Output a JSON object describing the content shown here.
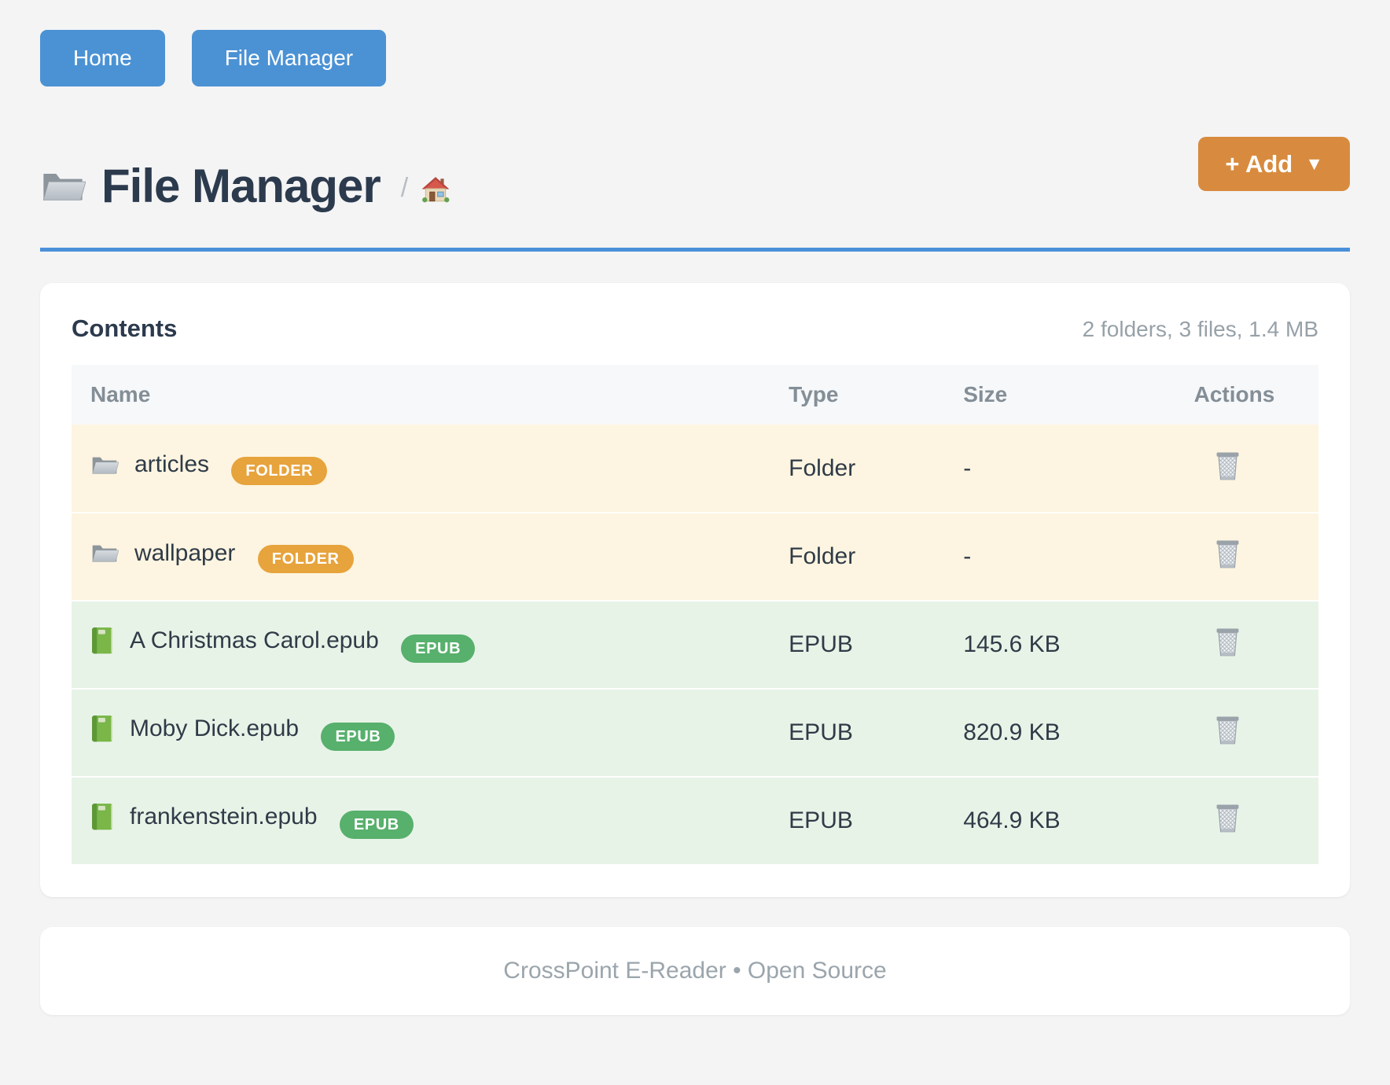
{
  "nav": {
    "home_label": "Home",
    "file_manager_label": "File Manager"
  },
  "header": {
    "title": "File Manager",
    "title_icon": "open-folder-icon",
    "breadcrumb_separator": "/",
    "breadcrumb_home_icon": "house-icon",
    "add_button_label": "+ Add",
    "add_button_caret": "▼"
  },
  "card": {
    "title": "Contents",
    "summary": "2 folders, 3 files, 1.4 MB",
    "table": {
      "columns": [
        "Name",
        "Type",
        "Size",
        "Actions"
      ],
      "rows": [
        {
          "name": "articles",
          "badge": "FOLDER",
          "kind": "folder",
          "icon": "folder-icon",
          "type": "Folder",
          "size": "-",
          "action_icon": "trash-icon"
        },
        {
          "name": "wallpaper",
          "badge": "FOLDER",
          "kind": "folder",
          "icon": "folder-icon",
          "type": "Folder",
          "size": "-",
          "action_icon": "trash-icon"
        },
        {
          "name": "A Christmas Carol.epub",
          "badge": "EPUB",
          "kind": "epub",
          "icon": "book-icon",
          "type": "EPUB",
          "size": "145.6 KB",
          "action_icon": "trash-icon"
        },
        {
          "name": "Moby Dick.epub",
          "badge": "EPUB",
          "kind": "epub",
          "icon": "book-icon",
          "type": "EPUB",
          "size": "820.9 KB",
          "action_icon": "trash-icon"
        },
        {
          "name": "frankenstein.epub",
          "badge": "EPUB",
          "kind": "epub",
          "icon": "book-icon",
          "type": "EPUB",
          "size": "464.9 KB",
          "action_icon": "trash-icon"
        }
      ]
    }
  },
  "footer": {
    "text": "CrossPoint E-Reader • Open Source"
  },
  "colors": {
    "nav_button": "#4b92d4",
    "header_underline": "#4a90d9",
    "add_button": "#d88b3e",
    "badge_folder": "#e7a33c",
    "badge_epub": "#57b06c",
    "row_folder_bg": "#fdf5e1",
    "row_epub_bg": "#e8f3e8",
    "table_header_bg": "#f6f8fa",
    "title_text": "#2c3a4d",
    "muted_text": "#97a1a8"
  }
}
